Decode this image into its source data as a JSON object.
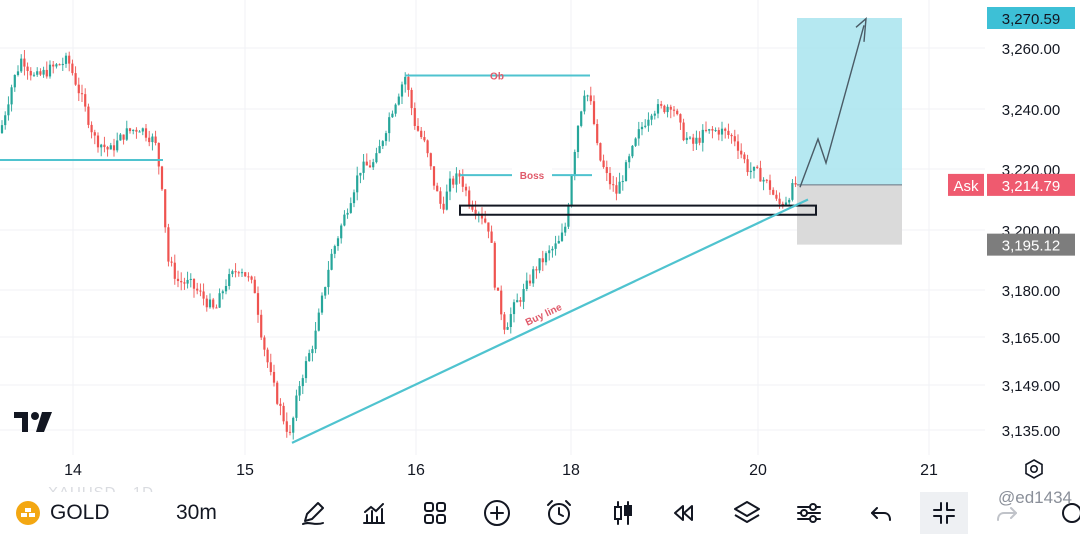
{
  "chart_data": {
    "type": "candlestick",
    "symbol": "GOLD",
    "interval": "30m",
    "x_ticks": [
      "14",
      "15",
      "16",
      "18",
      "20",
      "21"
    ],
    "y_ticks": [
      3135,
      3149,
      3165,
      3180,
      3200,
      3220,
      3240,
      3260
    ],
    "ylim": [
      3128,
      3274
    ],
    "price_labels": {
      "target": "3,270.59",
      "ask_label": "Ask",
      "ask": "3,214.79",
      "stop": "3,195.12"
    },
    "annotations": {
      "ob": "Ob",
      "boss": "Boss",
      "buy_line": "Buy line"
    },
    "colors": {
      "up": "#26a69a",
      "down": "#ef5350",
      "line": "#4fc3cf",
      "target_zone": "#a8e4ee",
      "stop_zone": "#d6d6d6",
      "ask": "#ef5a6f",
      "target_label": "#3dc0d6",
      "stop_label": "#7d7d7d"
    }
  },
  "toolbar": {
    "symbol": "GOLD",
    "interval": "30m",
    "ghost_symbol": "XAUUSD · 1D"
  },
  "watermark": "@ed1434"
}
